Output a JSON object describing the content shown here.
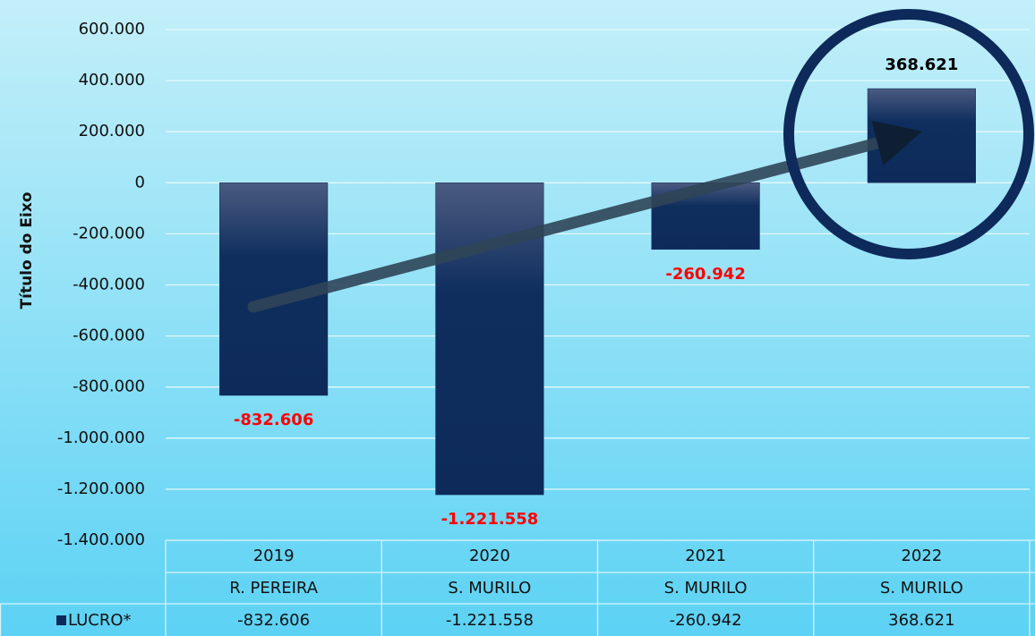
{
  "chart_data": {
    "type": "bar",
    "y_label": "Título do Eixo",
    "categories": [
      "2019",
      "2020",
      "2021",
      "2022"
    ],
    "subcategories": [
      "R. PEREIRA",
      "S. MURILO",
      "S. MURILO",
      "S. MURILO"
    ],
    "series": [
      {
        "name": "LUCRO*",
        "color": "#0d2a5a",
        "values": [
          -832606,
          -1221558,
          -260942,
          368621
        ],
        "value_labels": [
          "-832.606",
          "-1.221.558",
          "-260.942",
          "368.621"
        ]
      }
    ],
    "negative_label_color": "#ff0000",
    "positive_label_color": "#000000",
    "ylim": [
      -1400000,
      600000
    ],
    "yticks": [
      {
        "value": -1400000,
        "label": "-1.400.000"
      },
      {
        "value": -1200000,
        "label": "-1.200.000"
      },
      {
        "value": -1000000,
        "label": "-1.000.000"
      },
      {
        "value": -800000,
        "label": "-800.000"
      },
      {
        "value": -600000,
        "label": "-600.000"
      },
      {
        "value": -400000,
        "label": "-400.000"
      },
      {
        "value": -200000,
        "label": "-200.000"
      },
      0,
      {
        "value": 200000,
        "label": "200.000"
      },
      {
        "value": 400000,
        "label": "400.000"
      },
      {
        "value": 600000,
        "label": "600.000"
      }
    ],
    "grid": true
  }
}
